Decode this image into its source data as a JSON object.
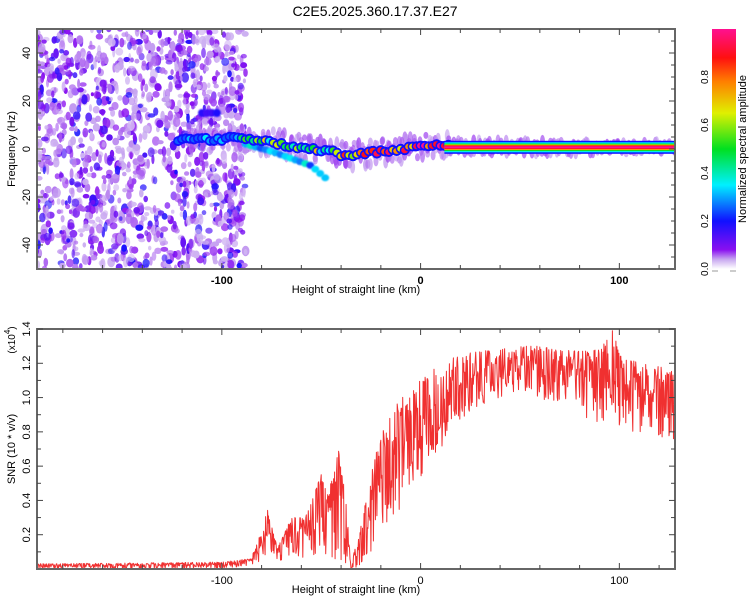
{
  "title": "C2E5.2025.360.17.37.E27",
  "chart_data": [
    {
      "type": "heatmap",
      "name": "spectrogram",
      "xlabel": "Height of straight line (km)",
      "ylabel": "Frequency (Hz)",
      "xlim": [
        -193,
        128
      ],
      "ylim": [
        -50,
        50
      ],
      "xticks": [
        -100,
        0,
        100
      ],
      "xtick_labels": [
        "-100",
        "0",
        "100"
      ],
      "xminor_step": 20,
      "yticks": [
        -40,
        -20,
        0,
        20,
        40
      ],
      "ytick_labels": [
        "-40",
        "-20",
        "0",
        "20",
        "40"
      ],
      "yminor_step": 5,
      "noise_region_x": [
        -193,
        -92
      ],
      "ridge": {
        "description": "Main signal ridge frequency (Hz) vs height (km)",
        "x": [
          -120,
          -110,
          -100,
          -92,
          -85,
          -75,
          -65,
          -55,
          -45,
          -38,
          -30,
          -20,
          -10,
          0,
          5,
          10,
          20,
          128
        ],
        "y": [
          4,
          4,
          4,
          5,
          4,
          3,
          1,
          0,
          -1,
          -3,
          -2,
          -1,
          0,
          1,
          2,
          1,
          1,
          0.5
        ],
        "amplitude": [
          0.15,
          0.2,
          0.3,
          0.45,
          0.55,
          0.6,
          0.65,
          0.55,
          0.6,
          0.75,
          0.8,
          0.85,
          0.85,
          0.9,
          0.85,
          0.95,
          0.95,
          0.98
        ]
      },
      "secondary_branch": {
        "x": [
          -88,
          -75,
          -65,
          -55,
          -48
        ],
        "y": [
          2,
          -1,
          -4,
          -7,
          -12
        ]
      },
      "colorbar": {
        "label": "Normalized spectral amplitude",
        "range": [
          0.0,
          1.0
        ],
        "ticks": [
          0.0,
          0.2,
          0.4,
          0.6,
          0.8
        ],
        "tick_labels": [
          "0.0",
          "0.2",
          "0.4",
          "0.6",
          "0.8"
        ],
        "colormap": [
          "#ffffff",
          "#c8a8f0",
          "#7a00e6",
          "#1010ff",
          "#00e8ff",
          "#00e000",
          "#ffff00",
          "#ff8000",
          "#ff0000",
          "#ff1090"
        ]
      }
    },
    {
      "type": "line",
      "name": "snr",
      "xlabel": "Height of straight line (km)",
      "ylabel": "SNR (10 * v/v)",
      "y_multiplier_label": "(x10",
      "y_multiplier_exp": "4",
      "xlim": [
        -193,
        128
      ],
      "ylim": [
        0,
        1.4
      ],
      "xticks": [
        -100,
        0,
        100
      ],
      "xtick_labels": [
        "-100",
        "0",
        "100"
      ],
      "xminor_step": 20,
      "yticks": [
        0.2,
        0.4,
        0.6,
        0.8,
        1.0,
        1.2,
        1.4
      ],
      "ytick_labels": [
        "0.2",
        "0.4",
        "0.6",
        "0.8",
        "1.0",
        "1.2",
        "1.4"
      ],
      "yminor_step": 0.1,
      "color": "#f03030",
      "envelope": {
        "description": "Approximate upper envelope / trend of SNR (x10^4) vs height (km); trace shows dense jagged variation beneath it",
        "x": [
          -193,
          -100,
          -85,
          -80,
          -77,
          -72,
          -65,
          -58,
          -50,
          -45,
          -40,
          -35,
          -30,
          -25,
          -20,
          -10,
          0,
          10,
          20,
          30,
          40,
          50,
          60,
          70,
          80,
          90,
          97,
          100,
          110,
          120,
          128
        ],
        "upper": [
          0.03,
          0.04,
          0.07,
          0.22,
          0.35,
          0.12,
          0.3,
          0.3,
          0.55,
          0.5,
          0.75,
          0.03,
          0.25,
          0.55,
          0.8,
          1.0,
          1.1,
          1.2,
          1.25,
          1.27,
          1.28,
          1.3,
          1.3,
          1.28,
          1.27,
          1.28,
          1.4,
          1.25,
          1.2,
          1.18,
          1.16
        ],
        "lower": [
          0.0,
          0.0,
          0.02,
          0.05,
          0.1,
          0.05,
          0.05,
          0.05,
          0.1,
          0.05,
          0.05,
          0.0,
          0.02,
          0.1,
          0.2,
          0.35,
          0.5,
          0.7,
          0.85,
          0.95,
          1.0,
          1.05,
          1.0,
          0.95,
          0.9,
          0.85,
          0.9,
          0.8,
          0.8,
          0.75,
          0.75
        ]
      }
    }
  ]
}
